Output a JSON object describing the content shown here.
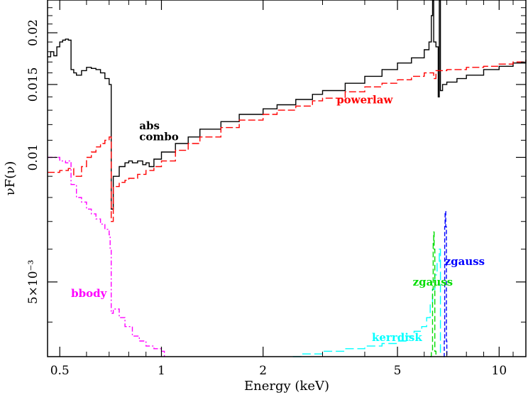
{
  "chart_data": {
    "type": "line",
    "xlabel": "Energy (keV)",
    "ylabel": "νF(ν)",
    "x_scale": "log",
    "y_scale": "log",
    "xlim": [
      0.46,
      12.0
    ],
    "ylim": [
      0.0033,
      0.024
    ],
    "x_ticks": [
      {
        "value": 0.5,
        "label": "0.5"
      },
      {
        "value": 1,
        "label": "1"
      },
      {
        "value": 2,
        "label": "2"
      },
      {
        "value": 5,
        "label": "5"
      },
      {
        "value": 10,
        "label": "10"
      }
    ],
    "y_ticks": [
      {
        "value": 0.005,
        "label": "5×10⁻³"
      },
      {
        "value": 0.01,
        "label": "0.01"
      },
      {
        "value": 0.015,
        "label": "0.015"
      },
      {
        "value": 0.02,
        "label": "0.02"
      }
    ],
    "grid": false,
    "colors": {
      "total": "#000000",
      "powerlaw": "#ff0000",
      "bbody": "#ff00ff",
      "kerrdisk": "#00ffff",
      "zgauss_green": "#00dd00",
      "zgauss_blue": "#0000ff"
    },
    "annotations": [
      {
        "text": "abs",
        "color": "#000000",
        "x": 0.86,
        "y": 0.0117
      },
      {
        "text": "combo",
        "color": "#000000",
        "x": 0.86,
        "y": 0.011
      },
      {
        "text": "powerlaw",
        "color": "#ff0000",
        "x": 3.3,
        "y": 0.0135
      },
      {
        "text": "bbody",
        "color": "#ff00ff",
        "x": 0.54,
        "y": 0.0046
      },
      {
        "text": "kerrdisk",
        "color": "#00ffff",
        "x": 4.2,
        "y": 0.0036
      },
      {
        "text": "zgauss",
        "color": "#00dd00",
        "x": 5.55,
        "y": 0.0049
      },
      {
        "text": "zgauss",
        "color": "#0000ff",
        "x": 6.9,
        "y": 0.0055
      }
    ],
    "series": [
      {
        "key": "total",
        "x": [
          0.46,
          0.47,
          0.48,
          0.49,
          0.5,
          0.51,
          0.52,
          0.53,
          0.54,
          0.55,
          0.56,
          0.58,
          0.6,
          0.62,
          0.64,
          0.66,
          0.68,
          0.7,
          0.705,
          0.71,
          0.72,
          0.75,
          0.78,
          0.8,
          0.82,
          0.85,
          0.88,
          0.9,
          0.92,
          0.95,
          1.0,
          1.1,
          1.2,
          1.3,
          1.5,
          1.7,
          2.0,
          2.2,
          2.5,
          2.8,
          3.0,
          3.5,
          4.0,
          4.5,
          5.0,
          5.5,
          6.0,
          6.2,
          6.3,
          6.35,
          6.4,
          6.5,
          6.6,
          6.65,
          6.7,
          6.8,
          7.0,
          7.5,
          8.0,
          9.0,
          10.0,
          11.0,
          12.0
        ],
        "y": [
          0.0175,
          0.018,
          0.0176,
          0.0185,
          0.019,
          0.0192,
          0.0193,
          0.0192,
          0.0163,
          0.016,
          0.0158,
          0.0162,
          0.0165,
          0.0164,
          0.0163,
          0.016,
          0.0155,
          0.015,
          0.015,
          0.0075,
          0.009,
          0.0095,
          0.0097,
          0.0098,
          0.0097,
          0.0098,
          0.0096,
          0.0097,
          0.0095,
          0.0099,
          0.0103,
          0.0108,
          0.0112,
          0.0117,
          0.0122,
          0.0127,
          0.0131,
          0.0134,
          0.0138,
          0.0142,
          0.0145,
          0.0151,
          0.0157,
          0.0163,
          0.0169,
          0.0174,
          0.0182,
          0.019,
          0.022,
          0.026,
          0.019,
          0.0185,
          0.014,
          0.026,
          0.0145,
          0.015,
          0.0152,
          0.0155,
          0.0158,
          0.0163,
          0.0166,
          0.0169,
          0.0172
        ]
      },
      {
        "key": "powerlaw",
        "x": [
          0.46,
          0.5,
          0.53,
          0.55,
          0.58,
          0.6,
          0.62,
          0.64,
          0.66,
          0.68,
          0.7,
          0.705,
          0.71,
          0.72,
          0.75,
          0.78,
          0.8,
          0.85,
          0.9,
          0.95,
          1.0,
          1.1,
          1.2,
          1.3,
          1.5,
          1.7,
          2.0,
          2.2,
          2.5,
          2.8,
          3.0,
          3.5,
          4.0,
          4.5,
          5.0,
          5.5,
          6.0,
          6.3,
          6.4,
          6.5,
          7.0,
          8.0,
          9.0,
          10.0,
          11.0,
          12.0
        ],
        "y": [
          0.0092,
          0.0093,
          0.0094,
          0.009,
          0.0095,
          0.01,
          0.0103,
          0.0106,
          0.0108,
          0.011,
          0.0112,
          0.0112,
          0.007,
          0.0085,
          0.0087,
          0.0088,
          0.0089,
          0.0091,
          0.0093,
          0.0095,
          0.0098,
          0.0104,
          0.0108,
          0.0112,
          0.0118,
          0.0123,
          0.0127,
          0.013,
          0.0133,
          0.0137,
          0.0139,
          0.0144,
          0.0148,
          0.0151,
          0.0154,
          0.0157,
          0.016,
          0.016,
          0.0155,
          0.0162,
          0.0163,
          0.0165,
          0.0166,
          0.0168,
          0.017,
          0.0172
        ]
      },
      {
        "key": "bbody",
        "x": [
          0.46,
          0.48,
          0.5,
          0.52,
          0.53,
          0.54,
          0.56,
          0.58,
          0.6,
          0.62,
          0.64,
          0.66,
          0.68,
          0.7,
          0.705,
          0.71,
          0.72,
          0.75,
          0.78,
          0.82,
          0.86,
          0.9,
          0.95,
          1.0,
          1.02
        ],
        "y": [
          0.01,
          0.01,
          0.0098,
          0.0097,
          0.0098,
          0.0086,
          0.008,
          0.0078,
          0.0075,
          0.0073,
          0.0071,
          0.0069,
          0.0067,
          0.0065,
          0.006,
          0.0042,
          0.0043,
          0.0041,
          0.0039,
          0.0037,
          0.0036,
          0.0035,
          0.00345,
          0.0034,
          0.0033
        ]
      },
      {
        "key": "kerrdisk",
        "x": [
          2.45,
          2.6,
          3.0,
          3.5,
          4.0,
          4.5,
          5.0,
          5.3,
          5.6,
          5.9,
          6.1,
          6.25,
          6.35,
          6.45,
          6.55,
          6.65,
          6.7
        ],
        "y": [
          0.0033,
          0.00335,
          0.0034,
          0.00345,
          0.0035,
          0.00355,
          0.0036,
          0.0037,
          0.0038,
          0.0039,
          0.0041,
          0.0044,
          0.0048,
          0.0052,
          0.0056,
          0.006,
          0.0033
        ]
      },
      {
        "key": "zgauss_green",
        "x": [
          6.25,
          6.3,
          6.35,
          6.38,
          6.4,
          6.42,
          6.45,
          6.5
        ],
        "y": [
          0.0033,
          0.0034,
          0.0048,
          0.0062,
          0.0066,
          0.006,
          0.0034,
          0.0033
        ]
      },
      {
        "key": "zgauss_blue",
        "x": [
          6.85,
          6.88,
          6.9,
          6.92,
          6.95,
          6.98,
          7.0
        ],
        "y": [
          0.0033,
          0.0036,
          0.0068,
          0.0074,
          0.0068,
          0.0036,
          0.0033
        ]
      }
    ]
  }
}
